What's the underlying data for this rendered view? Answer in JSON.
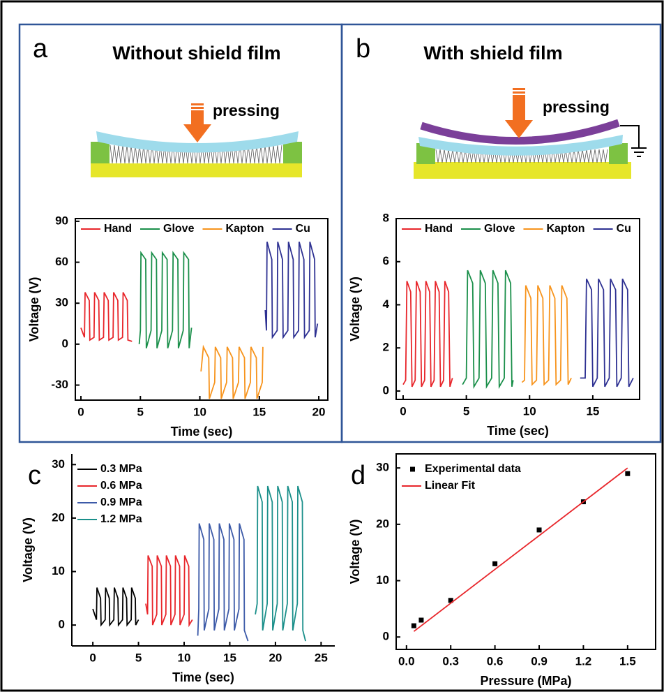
{
  "chart_data": [
    {
      "type": "line",
      "panel_label": "a",
      "title": "Without shield film",
      "annotation": "pressing",
      "x_label": "Time (sec)",
      "y_label": "Voltage (V)",
      "xlim": [
        -0.47,
        20.76
      ],
      "ylim": [
        -41,
        92
      ],
      "xticks": [
        0,
        5,
        10,
        15,
        20
      ],
      "yticks": [
        -30,
        0,
        30,
        60,
        90
      ],
      "legend": "top",
      "series": [
        {
          "name": "Hand",
          "color": "#e8262b",
          "x": [
            0,
            0.3,
            0.35,
            0.7,
            0.75,
            1.1,
            1.15,
            1.5,
            1.55,
            1.9,
            1.95,
            2.3,
            2.35,
            2.7,
            2.75,
            3.1,
            3.15,
            3.5,
            3.55,
            3.9,
            3.95,
            4.3
          ],
          "values": [
            12,
            5,
            38,
            32,
            3,
            5,
            38,
            32,
            3,
            5,
            38,
            32,
            3,
            5,
            38,
            32,
            3,
            5,
            38,
            32,
            3,
            2
          ]
        },
        {
          "name": "Glove",
          "color": "#1a8f4a",
          "x": [
            4.9,
            5.0,
            5.05,
            5.45,
            5.5,
            5.9,
            5.95,
            6.35,
            6.4,
            6.8,
            6.85,
            7.25,
            7.3,
            7.7,
            7.75,
            8.15,
            8.2,
            8.6,
            8.65,
            9.05,
            9.1,
            9.3
          ],
          "values": [
            0,
            10,
            67,
            62,
            -3,
            10,
            67,
            62,
            -3,
            10,
            67,
            62,
            -3,
            10,
            67,
            62,
            -3,
            10,
            67,
            62,
            -3,
            12
          ]
        },
        {
          "name": "Kapton",
          "color": "#f7941d",
          "x": [
            10.1,
            10.3,
            10.75,
            10.8,
            11.25,
            11.3,
            11.75,
            11.8,
            12.25,
            12.3,
            12.75,
            12.8,
            13.25,
            13.3,
            13.75,
            13.8,
            14.25,
            14.3,
            14.75,
            14.8,
            15.25,
            15.3
          ],
          "values": [
            -20,
            -2,
            -10,
            -40,
            -28,
            -2,
            -10,
            -40,
            -28,
            -2,
            -10,
            -40,
            -28,
            -2,
            -10,
            -40,
            -28,
            -2,
            -10,
            -40,
            -28,
            -2
          ]
        },
        {
          "name": "Cu",
          "color": "#2e3192",
          "x": [
            15.5,
            15.6,
            15.65,
            16.05,
            16.1,
            16.5,
            16.55,
            16.95,
            17.0,
            17.4,
            17.45,
            17.85,
            17.9,
            18.3,
            18.35,
            18.75,
            18.8,
            19.2,
            19.25,
            19.65,
            19.7,
            19.9
          ],
          "values": [
            25,
            10,
            75,
            62,
            5,
            10,
            75,
            62,
            5,
            10,
            75,
            62,
            5,
            10,
            75,
            62,
            5,
            10,
            75,
            62,
            5,
            15
          ]
        }
      ]
    },
    {
      "type": "line",
      "panel_label": "b",
      "title": "With shield film",
      "annotation": "pressing",
      "x_label": "Time (sec)",
      "y_label": "Voltage (V)",
      "xlim": [
        -0.55,
        18.7
      ],
      "ylim": [
        -0.39,
        8.0
      ],
      "xticks": [
        0,
        5,
        10,
        15
      ],
      "yticks": [
        0,
        2,
        4,
        6,
        8
      ],
      "legend": "top",
      "series": [
        {
          "name": "Hand",
          "color": "#e8262b",
          "x": [
            0,
            0.2,
            0.3,
            0.6,
            0.7,
            0.95,
            1.05,
            1.35,
            1.45,
            1.7,
            1.8,
            2.1,
            2.2,
            2.45,
            2.55,
            2.85,
            2.95,
            3.2,
            3.3,
            3.6,
            3.7,
            3.9
          ],
          "values": [
            0.3,
            0.5,
            5.1,
            4.6,
            0.2,
            0.5,
            5.1,
            4.6,
            0.2,
            0.5,
            5.1,
            4.6,
            0.2,
            0.5,
            5.1,
            4.6,
            0.2,
            0.5,
            5.1,
            4.6,
            0.2,
            0.6
          ]
        },
        {
          "name": "Glove",
          "color": "#1a8f4a",
          "x": [
            4.7,
            5.0,
            5.1,
            5.5,
            5.6,
            6.0,
            6.1,
            6.5,
            6.6,
            7.0,
            7.1,
            7.5,
            7.6,
            8.0,
            8.1,
            8.5,
            8.6,
            8.7
          ],
          "values": [
            0.3,
            0.6,
            5.6,
            5.0,
            0.2,
            0.6,
            5.6,
            5.0,
            0.2,
            0.6,
            5.6,
            5.0,
            0.2,
            0.6,
            5.6,
            5.0,
            0.2,
            0.5
          ]
        },
        {
          "name": "Kapton",
          "color": "#f7941d",
          "x": [
            9.4,
            9.6,
            9.7,
            10.1,
            10.2,
            10.55,
            10.65,
            11.05,
            11.15,
            11.5,
            11.6,
            12.0,
            12.1,
            12.45,
            12.55,
            12.95,
            13.05,
            13.3
          ],
          "values": [
            0.4,
            0.5,
            4.9,
            4.3,
            0.3,
            0.5,
            4.9,
            4.3,
            0.3,
            0.5,
            4.9,
            4.3,
            0.3,
            0.5,
            4.9,
            4.3,
            0.3,
            0.6
          ]
        },
        {
          "name": "Cu",
          "color": "#2e3192",
          "x": [
            14.0,
            14.4,
            14.5,
            14.9,
            15.0,
            15.35,
            15.45,
            15.85,
            15.95,
            16.3,
            16.4,
            16.8,
            16.9,
            17.25,
            17.35,
            17.75,
            17.85,
            18.2
          ],
          "values": [
            0.6,
            0.6,
            5.2,
            4.7,
            0.2,
            0.6,
            5.2,
            4.7,
            0.2,
            0.6,
            5.2,
            4.7,
            0.2,
            0.6,
            5.2,
            4.7,
            0.2,
            0.6
          ]
        }
      ]
    },
    {
      "type": "line",
      "panel_label": "c",
      "x_label": "Time (sec)",
      "y_label": "Voltage (V)",
      "xlim": [
        -2.3,
        26.5
      ],
      "ylim": [
        -3.9,
        32
      ],
      "xticks": [
        0,
        5,
        10,
        15,
        20,
        25
      ],
      "yticks": [
        0,
        10,
        20,
        30
      ],
      "legend": "upper left",
      "series": [
        {
          "name": "0.3 MPa",
          "color": "#000000",
          "x": [
            0,
            0.4,
            0.45,
            0.85,
            0.9,
            1.35,
            1.4,
            1.8,
            1.85,
            2.3,
            2.35,
            2.75,
            2.8,
            3.25,
            3.3,
            3.7,
            3.75,
            4.2,
            4.25,
            4.65,
            4.7,
            5.0
          ],
          "values": [
            3,
            1,
            7,
            5,
            0,
            1,
            7,
            5,
            0,
            1,
            7,
            5,
            0,
            1,
            7,
            5,
            0,
            1,
            7,
            5,
            0,
            1
          ]
        },
        {
          "name": "0.6 MPa",
          "color": "#e8262b",
          "x": [
            5.8,
            6.0,
            6.05,
            6.5,
            6.55,
            7.0,
            7.05,
            7.5,
            7.55,
            8.0,
            8.05,
            8.5,
            8.55,
            9.0,
            9.05,
            9.5,
            9.55,
            10.0,
            10.05,
            10.5,
            10.55,
            10.9
          ],
          "values": [
            4,
            2,
            13,
            11,
            0,
            2,
            13,
            11,
            0,
            2,
            13,
            11,
            0,
            2,
            13,
            11,
            0,
            2,
            13,
            11,
            0,
            1
          ]
        },
        {
          "name": "0.9 MPa",
          "color": "#3c5aa8",
          "x": [
            11.5,
            11.6,
            11.65,
            12.15,
            12.2,
            12.7,
            12.75,
            13.25,
            13.3,
            13.8,
            13.85,
            14.35,
            14.4,
            14.9,
            14.95,
            15.45,
            15.5,
            16.0,
            16.05,
            16.55,
            16.6,
            17.0
          ],
          "values": [
            -2,
            3,
            19,
            16,
            -1,
            3,
            19,
            16,
            -1,
            3,
            19,
            16,
            -1,
            3,
            19,
            16,
            -1,
            3,
            19,
            16,
            -1,
            -3
          ]
        },
        {
          "name": "1.2 MPa",
          "color": "#1a8f8a",
          "x": [
            17.8,
            18.0,
            18.05,
            18.55,
            18.6,
            19.1,
            19.15,
            19.65,
            19.7,
            20.2,
            20.25,
            20.75,
            20.8,
            21.3,
            21.35,
            21.85,
            21.9,
            22.4,
            22.45,
            22.95,
            23.0,
            23.3
          ],
          "values": [
            2,
            4,
            26,
            23,
            -1,
            4,
            26,
            23,
            -1,
            4,
            26,
            23,
            -1,
            4,
            26,
            23,
            -1,
            4,
            26,
            23,
            -1,
            -3
          ]
        }
      ]
    },
    {
      "type": "scatter",
      "panel_label": "d",
      "x_label": "Pressure (MPa)",
      "y_label": "Voltage (V)",
      "xlim": [
        -0.07,
        1.69
      ],
      "ylim": [
        -2.2,
        32.5
      ],
      "xticks": [
        {
          "value": 0,
          "label": "0.0"
        },
        0.3,
        0.6,
        0.9,
        1.2,
        1.5
      ],
      "yticks": [
        0,
        10,
        20,
        30
      ],
      "legend": "upper left",
      "series": [
        {
          "name": "Experimental data",
          "type": "scatter",
          "color": "#000000",
          "x": [
            0.05,
            0.1,
            0.3,
            0.6,
            0.9,
            1.2,
            1.5
          ],
          "values": [
            2,
            3,
            6.5,
            13,
            19,
            24,
            29
          ]
        },
        {
          "name": "Linear Fit",
          "type": "line",
          "color": "#e8262b",
          "x": [
            0.05,
            1.5
          ],
          "values": [
            1,
            30
          ]
        }
      ]
    }
  ]
}
